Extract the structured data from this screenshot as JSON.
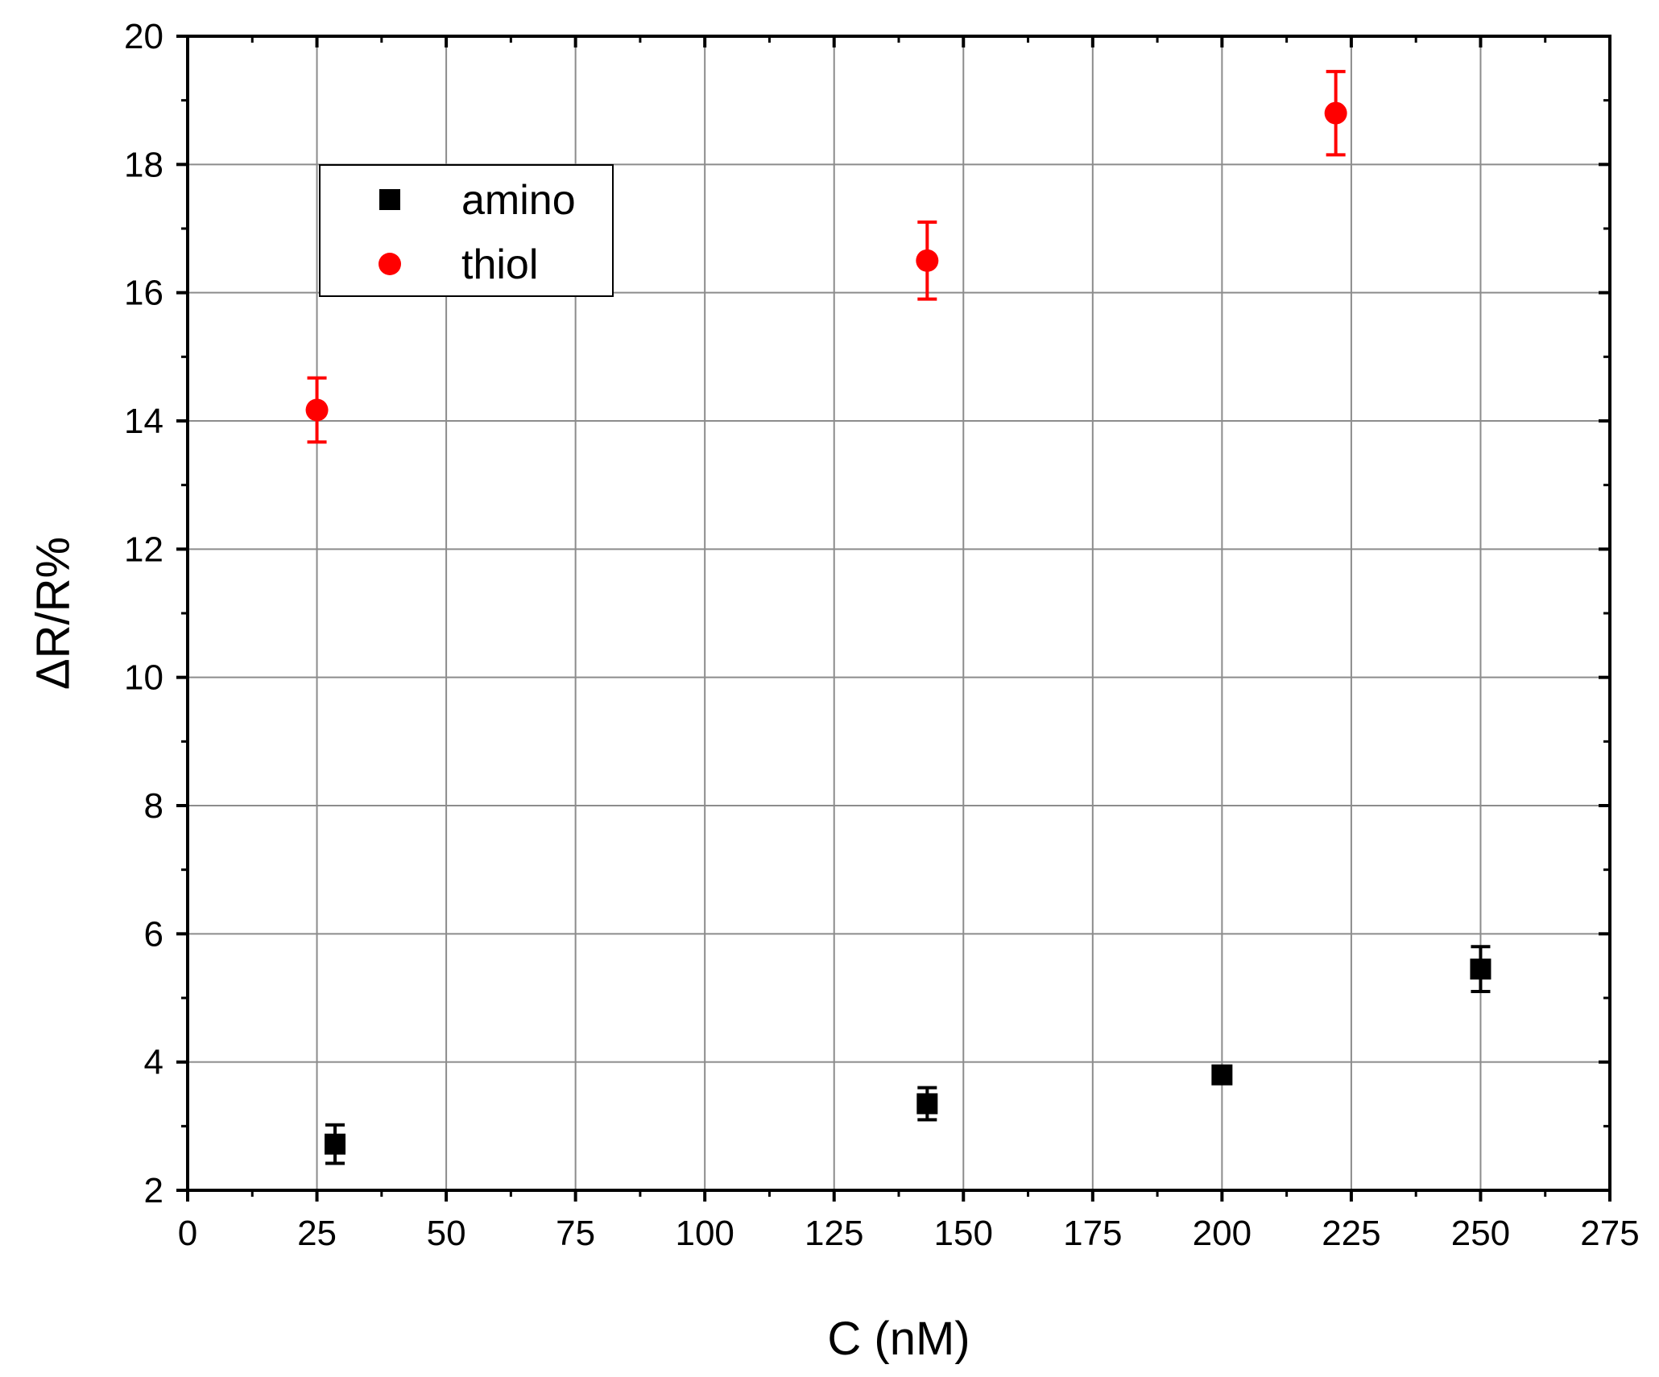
{
  "chart_data": {
    "type": "scatter",
    "xlabel": "C (nM)",
    "ylabel": "ΔR/R%",
    "xlim": [
      0,
      275
    ],
    "ylim": [
      2,
      20
    ],
    "x_ticks": [
      0,
      25,
      50,
      75,
      100,
      125,
      150,
      175,
      200,
      225,
      250,
      275
    ],
    "y_ticks": [
      2,
      4,
      6,
      8,
      10,
      12,
      14,
      16,
      18,
      20
    ],
    "grid": true,
    "legend_position": "top-left",
    "series": [
      {
        "name": "amino",
        "marker": "square",
        "color": "#000000",
        "points": [
          {
            "x": 28.5,
            "y": 2.72,
            "err": 0.3
          },
          {
            "x": 143,
            "y": 3.35,
            "err": 0.25
          },
          {
            "x": 200,
            "y": 3.8,
            "err": 0.1
          },
          {
            "x": 250,
            "y": 5.45,
            "err": 0.35
          }
        ]
      },
      {
        "name": "thiol",
        "marker": "circle",
        "color": "#ff0000",
        "points": [
          {
            "x": 25,
            "y": 14.17,
            "err": 0.5
          },
          {
            "x": 143,
            "y": 16.5,
            "err": 0.6
          },
          {
            "x": 222,
            "y": 18.8,
            "err": 0.65
          }
        ]
      }
    ]
  }
}
